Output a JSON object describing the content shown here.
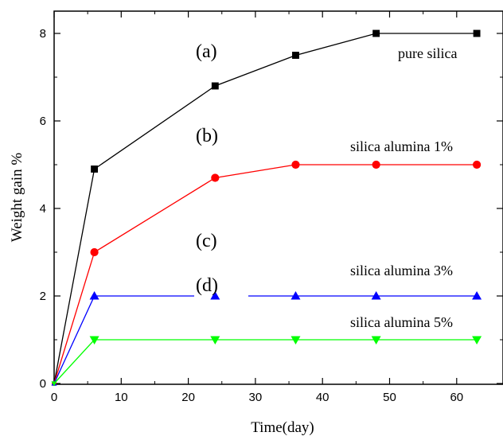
{
  "chart_data": {
    "type": "line",
    "xlabel": "Time(day)",
    "ylabel": "Weight gain %",
    "xlim": [
      0,
      65
    ],
    "ylim": [
      0,
      8.8
    ],
    "x_ticks": [
      0,
      10,
      20,
      30,
      40,
      50,
      60
    ],
    "y_ticks": [
      0,
      2,
      4,
      6,
      8
    ],
    "grid": false,
    "legend": "none",
    "series": [
      {
        "name": "pure silica",
        "color": "#000000",
        "marker": "square",
        "x": [
          0,
          6,
          24,
          36,
          48,
          63
        ],
        "y": [
          0,
          4.9,
          6.8,
          7.5,
          8.0,
          8.0
        ]
      },
      {
        "name": "silica alumina 1%",
        "color": "#ff0000",
        "marker": "circle",
        "x": [
          0,
          6,
          24,
          36,
          48,
          63
        ],
        "y": [
          0,
          3.0,
          4.7,
          5.0,
          5.0,
          5.0
        ]
      },
      {
        "name": "silica alumina 3%",
        "color": "#0000ff",
        "marker": "triangle-up",
        "x": [
          0,
          6,
          24,
          36,
          48,
          63
        ],
        "y": [
          0,
          2.0,
          2.0,
          2.0,
          2.0,
          2.0
        ]
      },
      {
        "name": "silica alumina 5%",
        "color": "#00ff00",
        "marker": "triangle-down",
        "x": [
          0,
          6,
          24,
          36,
          48,
          63
        ],
        "y": [
          0,
          1.0,
          1.0,
          1.0,
          1.0,
          1.0
        ]
      }
    ],
    "panel_labels": [
      "(a)",
      "(b)",
      "(c)",
      "(d)"
    ]
  }
}
